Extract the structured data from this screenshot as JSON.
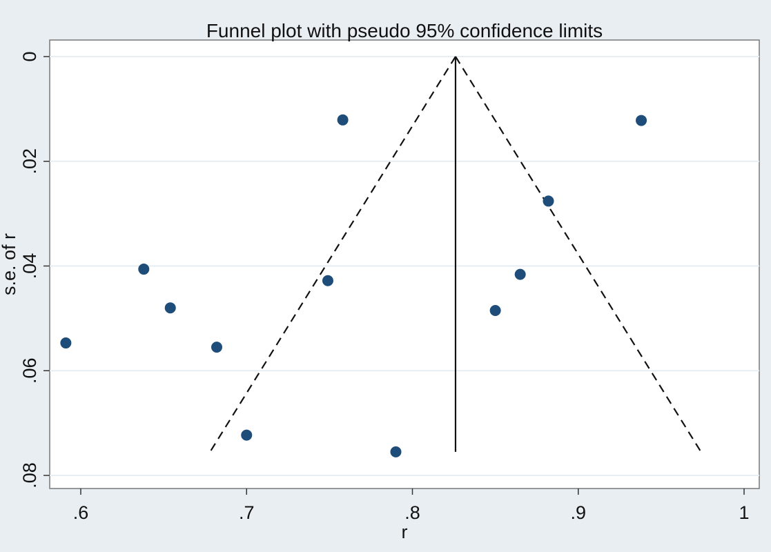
{
  "chart_data": {
    "type": "scatter",
    "title": "Funnel plot with pseudo 95% confidence limits",
    "xlabel": "r",
    "ylabel": "s.e. of r",
    "xlim": [
      0.59,
      1.0
    ],
    "ylim": [
      0,
      0.08
    ],
    "y_reversed": true,
    "grid": true,
    "xticks": [
      0.6,
      0.7,
      0.8,
      0.9,
      1
    ],
    "xtick_labels": [
      ".6",
      ".7",
      ".8",
      ".9",
      "1"
    ],
    "yticks": [
      0,
      0.02,
      0.04,
      0.06,
      0.08
    ],
    "ytick_labels": [
      "0",
      ".02",
      ".04",
      ".06",
      ".08"
    ],
    "series": [
      {
        "type": "scatter",
        "x": [
          0.591,
          0.638,
          0.654,
          0.682,
          0.7,
          0.749,
          0.758,
          0.79,
          0.85,
          0.865,
          0.882,
          0.938
        ],
        "y": [
          0.0547,
          0.0406,
          0.048,
          0.0555,
          0.0723,
          0.0428,
          0.0121,
          0.0755,
          0.0485,
          0.0416,
          0.0276,
          0.0122
        ]
      }
    ],
    "reference_line": {
      "x": 0.826,
      "y": [
        0,
        0.0755
      ]
    },
    "confidence_limits": {
      "apex": {
        "x": 0.826,
        "y": 0
      },
      "left": {
        "x": 0.678,
        "y": 0.0755
      },
      "right": {
        "x": 0.974,
        "y": 0.0755
      }
    },
    "colors": {
      "marker": "#1d4d78",
      "plot_bg": "#ffffff",
      "outer_bg": "#e9eef3",
      "grid": "#e6edf3",
      "line": "#111111"
    }
  }
}
